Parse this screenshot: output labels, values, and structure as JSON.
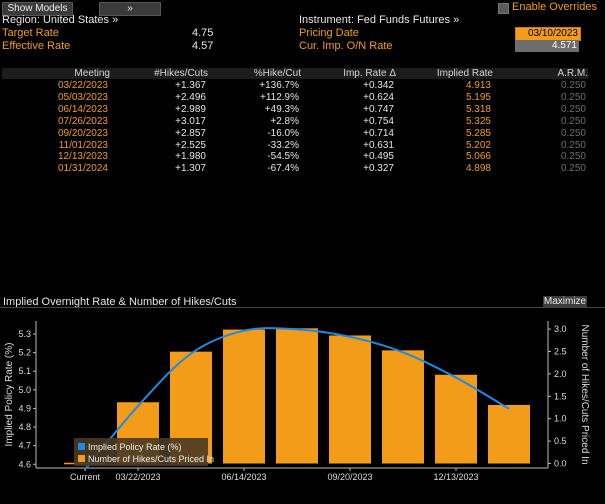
{
  "toolbar": {
    "show_models_label": "Show Models",
    "chevron_label": "»",
    "enable_overrides_label": "Enable Overrides"
  },
  "header": {
    "region_label": "Region: United States »",
    "instrument_label": "Instrument: Fed Funds Futures »",
    "target_rate_label": "Target Rate",
    "target_rate_value": "4.75",
    "effective_rate_label": "Effective Rate",
    "effective_rate_value": "4.57",
    "pricing_date_label": "Pricing Date",
    "pricing_date_value": "03/10/2023",
    "cur_imp_label": "Cur. Imp. O/N Rate",
    "cur_imp_value": "4.571"
  },
  "table": {
    "columns": [
      "Meeting",
      "#Hikes/Cuts",
      "%Hike/Cut",
      "Imp. Rate Δ",
      "Implied Rate",
      "A.R.M."
    ],
    "rows": [
      [
        "03/22/2023",
        "+1.367",
        "+136.7%",
        "+0.342",
        "4.913",
        "0.250"
      ],
      [
        "05/03/2023",
        "+2.496",
        "+112.9%",
        "+0.624",
        "5.195",
        "0.250"
      ],
      [
        "06/14/2023",
        "+2.989",
        "+49.3%",
        "+0.747",
        "5.318",
        "0.250"
      ],
      [
        "07/26/2023",
        "+3.017",
        "+2.8%",
        "+0.754",
        "5.325",
        "0.250"
      ],
      [
        "09/20/2023",
        "+2.857",
        "-16.0%",
        "+0.714",
        "5.285",
        "0.250"
      ],
      [
        "11/01/2023",
        "+2.525",
        "-33.2%",
        "+0.631",
        "5.202",
        "0.250"
      ],
      [
        "12/13/2023",
        "+1.980",
        "-54.5%",
        "+0.495",
        "5.066",
        "0.250"
      ],
      [
        "01/31/2024",
        "+1.307",
        "-67.4%",
        "+0.327",
        "4.898",
        "0.250"
      ]
    ]
  },
  "panel": {
    "title": "Implied Overnight Rate & Number of Hikes/Cuts",
    "maximize_label": "Maximize"
  },
  "colors": {
    "accent_orange": "#f39c1a",
    "line_blue": "#1e8ae8",
    "background": "#000000"
  },
  "chart_data": {
    "type": "bar",
    "categories": [
      "Current",
      "03/22/2023",
      "05/03/2023",
      "06/14/2023",
      "07/26/2023",
      "09/20/2023",
      "11/01/2023",
      "12/13/2023",
      "01/31/2024"
    ],
    "x_tick_labels": [
      "Current",
      "03/22/2023",
      "06/14/2023",
      "09/20/2023",
      "12/13/2023"
    ],
    "series": [
      {
        "name": "Implied Policy Rate (%)",
        "type": "line",
        "axis": "left",
        "values": [
          4.571,
          4.913,
          5.195,
          5.318,
          5.325,
          5.285,
          5.202,
          5.066,
          4.898
        ]
      },
      {
        "name": "Number of Hikes/Cuts Priced In",
        "type": "bar",
        "axis": "right",
        "values": [
          0,
          1.367,
          2.496,
          2.989,
          3.017,
          2.857,
          2.525,
          1.98,
          1.307
        ]
      }
    ],
    "ylabel": "Implied Policy Rate (%)",
    "y2label": "Number of Hikes/Cuts Priced In",
    "ylim": [
      4.58,
      5.37
    ],
    "y2lim": [
      -0.1,
      3.18
    ],
    "y_ticks": [
      "4.6",
      "4.7",
      "4.8",
      "4.9",
      "5.0",
      "5.1",
      "5.2",
      "5.3"
    ],
    "y2_ticks": [
      "0.0",
      "0.5",
      "1.0",
      "1.5",
      "2.0",
      "2.5",
      "3.0"
    ],
    "legend_position": "bottom-left",
    "grid": false
  }
}
